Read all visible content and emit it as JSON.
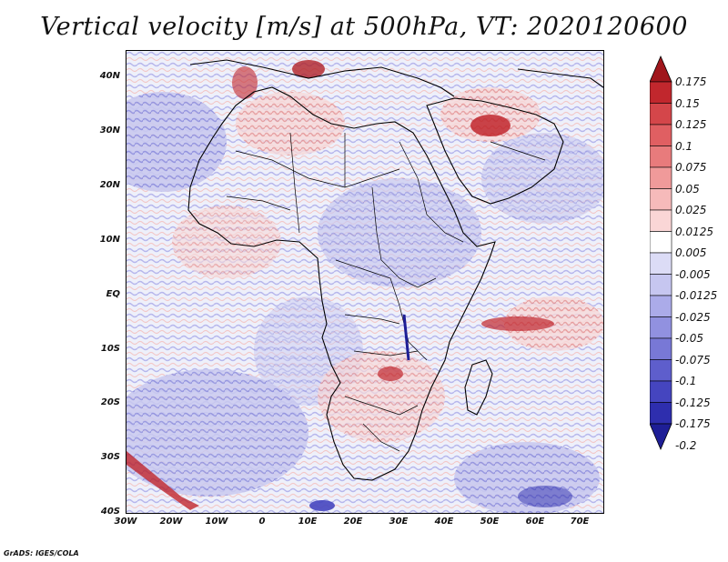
{
  "title": "Vertical velocity [m/s] at 500hPa, VT: 2020120600",
  "credit": "GrADS: IGES/COLA",
  "axes": {
    "lat_labels": [
      "40N",
      "30N",
      "20N",
      "10N",
      "EQ",
      "10S",
      "20S",
      "30S",
      "40S"
    ],
    "lon_labels": [
      "30W",
      "20W",
      "10W",
      "0",
      "10E",
      "20E",
      "30E",
      "40E",
      "50E",
      "60E",
      "70E"
    ]
  },
  "colorbar": {
    "labels": [
      "0.175",
      "0.15",
      "0.125",
      "0.1",
      "0.075",
      "0.05",
      "0.025",
      "0.0125",
      "0.005",
      "-0.005",
      "-0.0125",
      "-0.025",
      "-0.05",
      "-0.075",
      "-0.1",
      "-0.125",
      "-0.175",
      "-0.2"
    ],
    "colors": [
      "#a0161c",
      "#c1272d",
      "#d4464a",
      "#e05f62",
      "#e87b7c",
      "#f09a9a",
      "#f6baba",
      "#fad6d6",
      "#ffffff",
      "#dcdcf6",
      "#c6c6f0",
      "#ababe9",
      "#9191e0",
      "#7878d6",
      "#5e5ecc",
      "#4545bf",
      "#2e2eae",
      "#1e1e96"
    ]
  }
}
